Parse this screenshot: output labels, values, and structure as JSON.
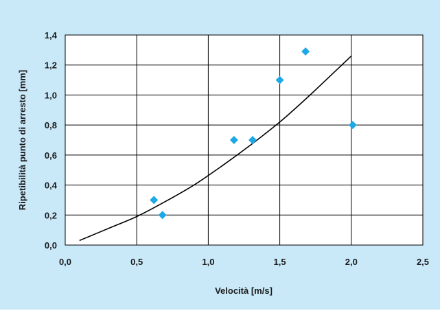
{
  "colors": {
    "background": "#c9e9f9",
    "plot_area": "#ffffff",
    "grid": "#000000",
    "marker": "#1fa8e6",
    "curve": "#000000"
  },
  "chart_data": {
    "type": "scatter",
    "title": "",
    "xlabel": "Velocità [m/s]",
    "ylabel": "Ripetibilità punto di arresto [mm]",
    "xlim": [
      0.0,
      2.5
    ],
    "ylim": [
      0.0,
      1.4
    ],
    "x_ticks": [
      0.0,
      0.5,
      1.0,
      1.5,
      2.0,
      2.5
    ],
    "y_ticks": [
      0.0,
      0.2,
      0.4,
      0.6,
      0.8,
      1.0,
      1.2,
      1.4
    ],
    "x_tick_labels": [
      "0,0",
      "0,5",
      "1,0",
      "1,5",
      "2,0",
      "2,5"
    ],
    "y_tick_labels": [
      "0,0",
      "0,2",
      "0,4",
      "0,6",
      "0,8",
      "1,0",
      "1,2",
      "1,4"
    ],
    "grid": true,
    "series": [
      {
        "marker": "diamond",
        "points": [
          {
            "x": 0.62,
            "y": 0.3
          },
          {
            "x": 0.68,
            "y": 0.2
          },
          {
            "x": 1.18,
            "y": 0.7
          },
          {
            "x": 1.31,
            "y": 0.7
          },
          {
            "x": 1.5,
            "y": 1.1
          },
          {
            "x": 1.68,
            "y": 1.29
          },
          {
            "x": 2.01,
            "y": 0.8
          }
        ]
      }
    ],
    "trendline": {
      "x": [
        0.1,
        0.3,
        0.5,
        0.7,
        0.9,
        1.1,
        1.3,
        1.5,
        1.7,
        1.9,
        2.0
      ],
      "y": [
        0.03,
        0.11,
        0.19,
        0.29,
        0.4,
        0.53,
        0.67,
        0.82,
        0.99,
        1.17,
        1.26
      ]
    }
  }
}
